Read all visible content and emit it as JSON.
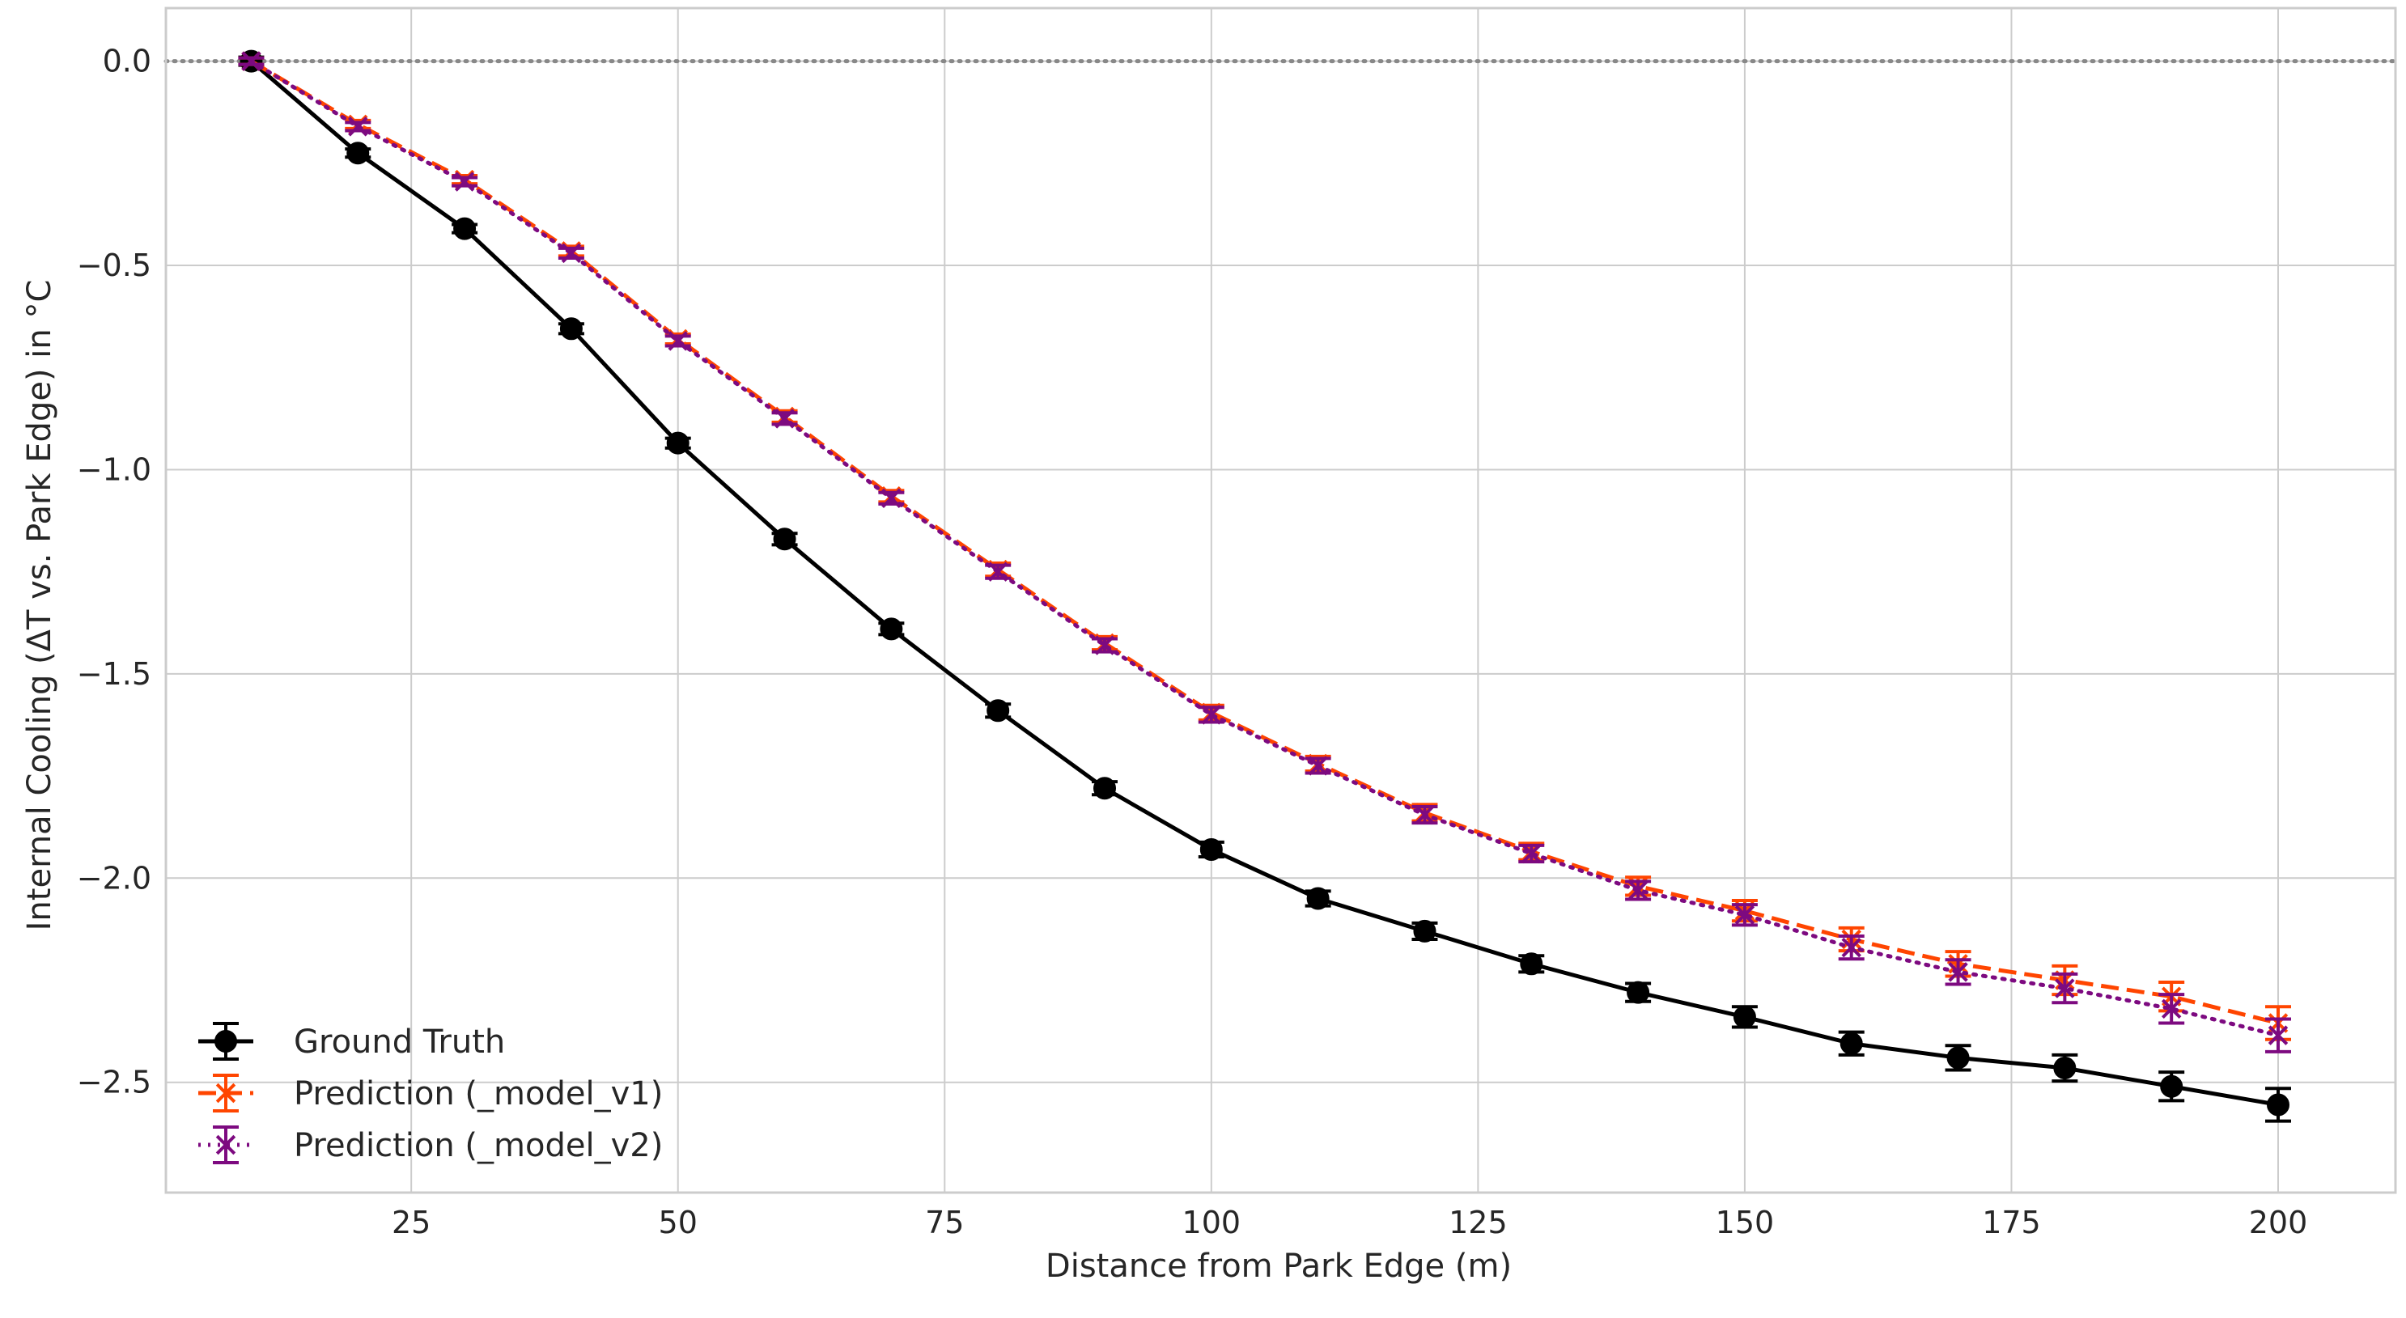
{
  "chart_data": {
    "type": "line",
    "title": "",
    "xlabel": "Distance from Park Edge (m)",
    "ylabel": "Internal Cooling (ΔT vs. Park Edge) in °C",
    "x": [
      10,
      20,
      30,
      40,
      50,
      60,
      70,
      80,
      90,
      100,
      110,
      120,
      130,
      140,
      150,
      160,
      170,
      180,
      190,
      200
    ],
    "xlim": [
      2,
      211
    ],
    "ylim": [
      -2.77,
      0.13
    ],
    "xticks": [
      25,
      50,
      75,
      100,
      125,
      150,
      175,
      200
    ],
    "yticks": [
      0.0,
      -0.5,
      -1.0,
      -1.5,
      -2.0,
      -2.5
    ],
    "xtick_labels": [
      "25",
      "50",
      "75",
      "100",
      "125",
      "150",
      "175",
      "200"
    ],
    "ytick_labels": [
      "0.0",
      "−0.5",
      "−1.0",
      "−1.5",
      "−2.0",
      "−2.5"
    ],
    "grid": true,
    "reference_line": {
      "y": 0,
      "style": "dotted",
      "color": "#888888"
    },
    "legend_position": "lower-left",
    "series": [
      {
        "name": "Ground Truth",
        "color": "#000000",
        "linestyle": "solid",
        "marker": "circle",
        "values": [
          0.0,
          -0.225,
          -0.41,
          -0.655,
          -0.935,
          -1.17,
          -1.39,
          -1.59,
          -1.78,
          -1.93,
          -2.05,
          -2.13,
          -2.21,
          -2.28,
          -2.34,
          -2.405,
          -2.44,
          -2.465,
          -2.51,
          -2.555
        ],
        "errors": [
          0.01,
          0.01,
          0.01,
          0.012,
          0.012,
          0.014,
          0.014,
          0.016,
          0.016,
          0.018,
          0.018,
          0.02,
          0.02,
          0.022,
          0.025,
          0.028,
          0.03,
          0.032,
          0.035,
          0.04
        ]
      },
      {
        "name": "Prediction (_model_v1)",
        "color": "#ff4500",
        "linestyle": "dashed",
        "marker": "x",
        "values": [
          0.0,
          -0.155,
          -0.29,
          -0.465,
          -0.68,
          -0.87,
          -1.065,
          -1.245,
          -1.425,
          -1.595,
          -1.72,
          -1.84,
          -1.935,
          -2.02,
          -2.08,
          -2.15,
          -2.21,
          -2.25,
          -2.29,
          -2.355
        ],
        "errors": [
          0.008,
          0.01,
          0.01,
          0.012,
          0.012,
          0.014,
          0.014,
          0.016,
          0.016,
          0.018,
          0.018,
          0.02,
          0.02,
          0.022,
          0.025,
          0.028,
          0.03,
          0.035,
          0.035,
          0.04
        ]
      },
      {
        "name": "Prediction (_model_v2)",
        "color": "#7d0a80",
        "linestyle": "dotted",
        "marker": "x",
        "values": [
          0.0,
          -0.16,
          -0.295,
          -0.47,
          -0.685,
          -0.875,
          -1.07,
          -1.25,
          -1.43,
          -1.6,
          -1.725,
          -1.845,
          -1.94,
          -2.03,
          -2.09,
          -2.17,
          -2.23,
          -2.27,
          -2.32,
          -2.385
        ],
        "errors": [
          0.008,
          0.01,
          0.01,
          0.012,
          0.012,
          0.014,
          0.014,
          0.016,
          0.016,
          0.018,
          0.018,
          0.02,
          0.02,
          0.022,
          0.025,
          0.028,
          0.03,
          0.035,
          0.035,
          0.04
        ]
      }
    ]
  }
}
